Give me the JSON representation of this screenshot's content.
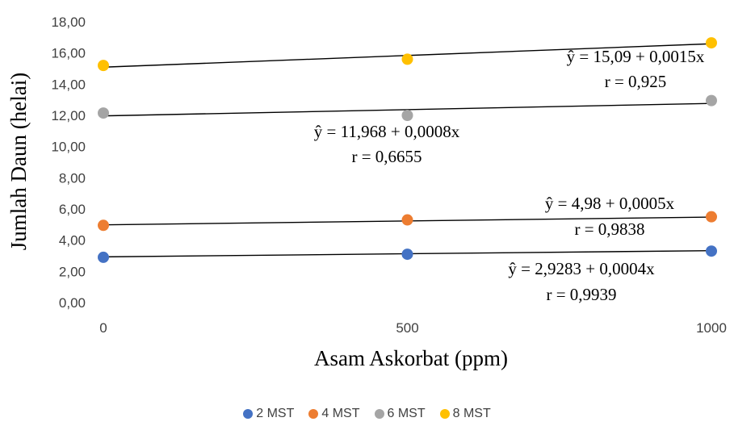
{
  "chart_data": {
    "type": "scatter",
    "x": [
      0,
      500,
      1000
    ],
    "xlim": [
      0,
      1000
    ],
    "ylim": [
      0,
      18
    ],
    "xlabel": "Asam Askorbat (ppm)",
    "ylabel": "Jumlah Daun (helai)",
    "x_ticks": [
      "0",
      "500",
      "1000"
    ],
    "y_ticks": [
      "0,00",
      "2,00",
      "4,00",
      "6,00",
      "8,00",
      "10,00",
      "12,00",
      "14,00",
      "16,00",
      "18,00"
    ],
    "grid": false,
    "legend_position": "bottom",
    "series": [
      {
        "name": "2 MST",
        "color": "#4472C4",
        "values": [
          2.9,
          3.1,
          3.3
        ],
        "intercept": 2.9283,
        "slope": 0.0004
      },
      {
        "name": "4 MST",
        "color": "#ED7D31",
        "values": [
          4.95,
          5.3,
          5.5
        ],
        "intercept": 4.98,
        "slope": 0.0005
      },
      {
        "name": "6 MST",
        "color": "#A5A5A5",
        "values": [
          12.15,
          12.0,
          12.95
        ],
        "intercept": 11.968,
        "slope": 0.0008
      },
      {
        "name": "8 MST",
        "color": "#FFC000",
        "values": [
          15.2,
          15.6,
          16.65
        ],
        "intercept": 15.09,
        "slope": 0.0015
      }
    ],
    "annotations": [
      {
        "series": "8 MST",
        "equation": "ŷ = 15,09 + 0,0015x",
        "r": "r = 0,925"
      },
      {
        "series": "6 MST",
        "equation": "ŷ = 11,968 + 0,0008x",
        "r": "r = 0,6655"
      },
      {
        "series": "4 MST",
        "equation": "ŷ = 4,98 + 0,0005x",
        "r": "r = 0,9838"
      },
      {
        "series": "2 MST",
        "equation": "ŷ = 2,9283 + 0,0004x",
        "r": "r = 0,9939"
      }
    ]
  }
}
